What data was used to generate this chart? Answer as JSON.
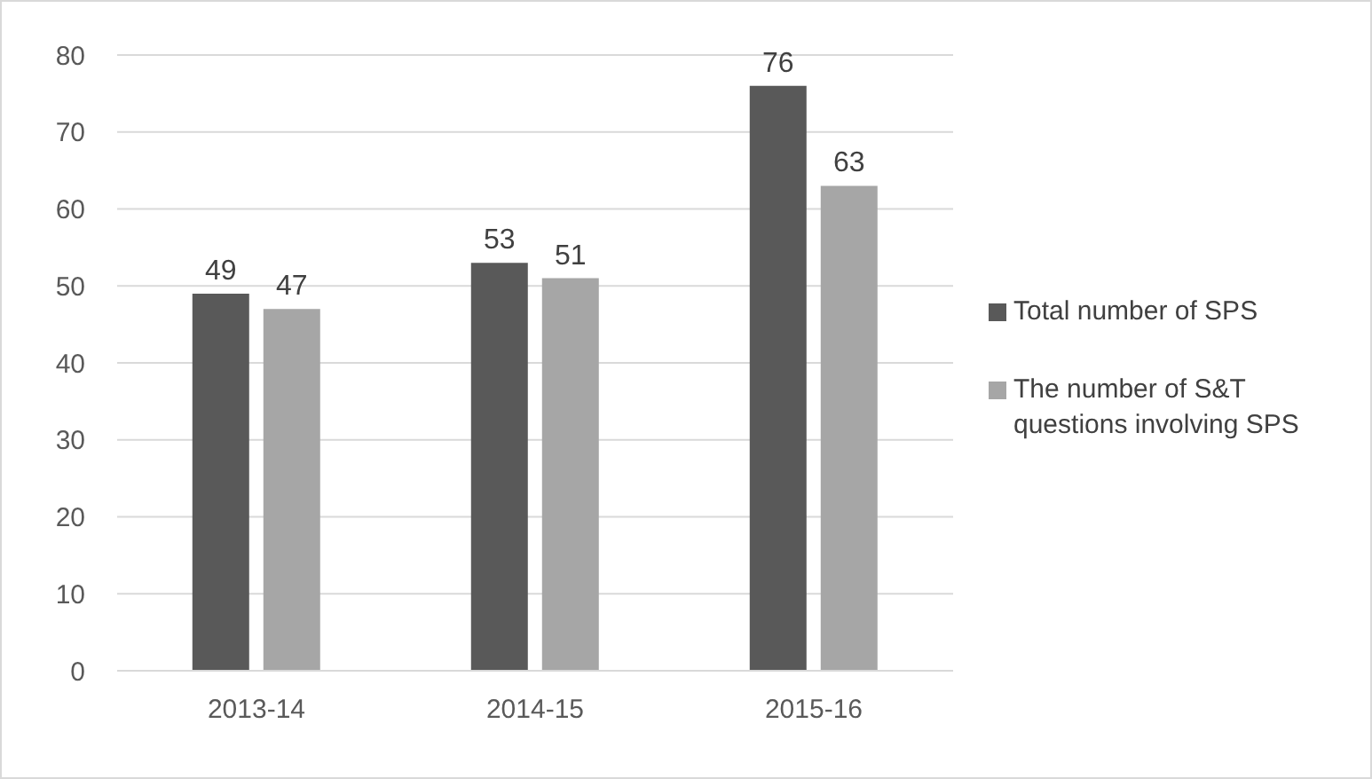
{
  "chart_data": {
    "type": "bar",
    "categories": [
      "2013-14",
      "2014-15",
      "2015-16"
    ],
    "series": [
      {
        "name": "Total number of SPS",
        "color": "#595959",
        "values": [
          49,
          53,
          76
        ]
      },
      {
        "name": "The number of S&T questions involving SPS",
        "color": "#a6a6a6",
        "values": [
          47,
          51,
          63
        ]
      }
    ],
    "ylim": [
      0,
      80
    ],
    "yticks": [
      0,
      10,
      20,
      30,
      40,
      50,
      60,
      70,
      80
    ],
    "grid": "y",
    "legend": "right",
    "data_labels": true
  }
}
